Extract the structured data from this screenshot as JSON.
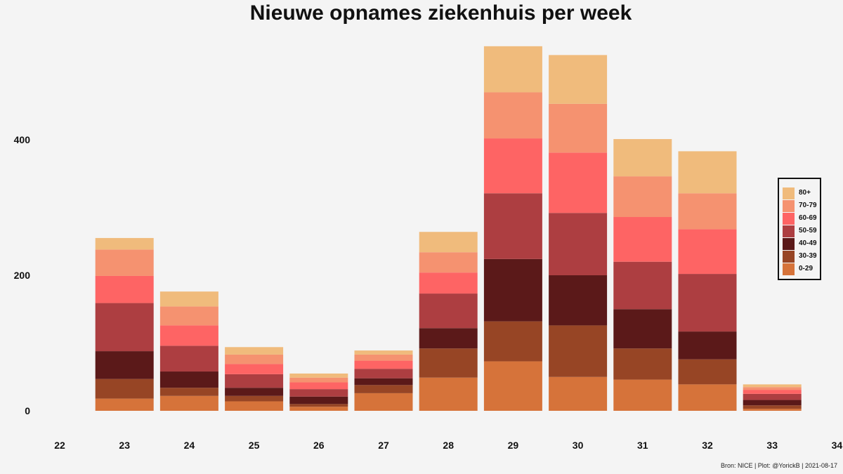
{
  "chart_data": {
    "type": "bar",
    "stacked": true,
    "title": "Nieuwe opnames ziekenhuis per week",
    "xlabel": "",
    "ylabel": "",
    "x_ticks": [
      22,
      23,
      24,
      25,
      26,
      27,
      28,
      29,
      30,
      31,
      32,
      33,
      34
    ],
    "y_ticks": [
      0,
      200,
      400
    ],
    "ylim": [
      0,
      550
    ],
    "xlim": [
      22,
      34
    ],
    "grid": false,
    "legend_position": "right",
    "categories": [
      23,
      24,
      25,
      26,
      27,
      28,
      29,
      30,
      31,
      32,
      33
    ],
    "series": [
      {
        "name": "0-29",
        "color": "#d6733a",
        "values": [
          18,
          22,
          14,
          6,
          26,
          49,
          73,
          50,
          46,
          39,
          3
        ]
      },
      {
        "name": "30-39",
        "color": "#974525",
        "values": [
          29,
          12,
          8,
          4,
          12,
          43,
          59,
          76,
          46,
          37,
          5
        ]
      },
      {
        "name": "40-49",
        "color": "#5b1919",
        "values": [
          41,
          24,
          12,
          11,
          10,
          30,
          92,
          74,
          58,
          41,
          8
        ]
      },
      {
        "name": "50-59",
        "color": "#ad3e41",
        "values": [
          71,
          38,
          20,
          11,
          14,
          51,
          97,
          92,
          70,
          85,
          9
        ]
      },
      {
        "name": "60-69",
        "color": "#fe6464",
        "values": [
          40,
          30,
          15,
          10,
          12,
          31,
          81,
          89,
          66,
          66,
          6
        ]
      },
      {
        "name": "70-79",
        "color": "#f59270",
        "values": [
          39,
          28,
          14,
          7,
          9,
          30,
          68,
          72,
          60,
          53,
          4
        ]
      },
      {
        "name": "80+",
        "color": "#f0bb7c",
        "values": [
          17,
          22,
          11,
          6,
          6,
          30,
          68,
          72,
          55,
          62,
          4
        ]
      }
    ],
    "legend_order": [
      "80+",
      "70-79",
      "60-69",
      "50-59",
      "40-49",
      "30-39",
      "0-29"
    ]
  },
  "caption": "Bron: NICE | Plot: @YorickB |  2021-08-17"
}
